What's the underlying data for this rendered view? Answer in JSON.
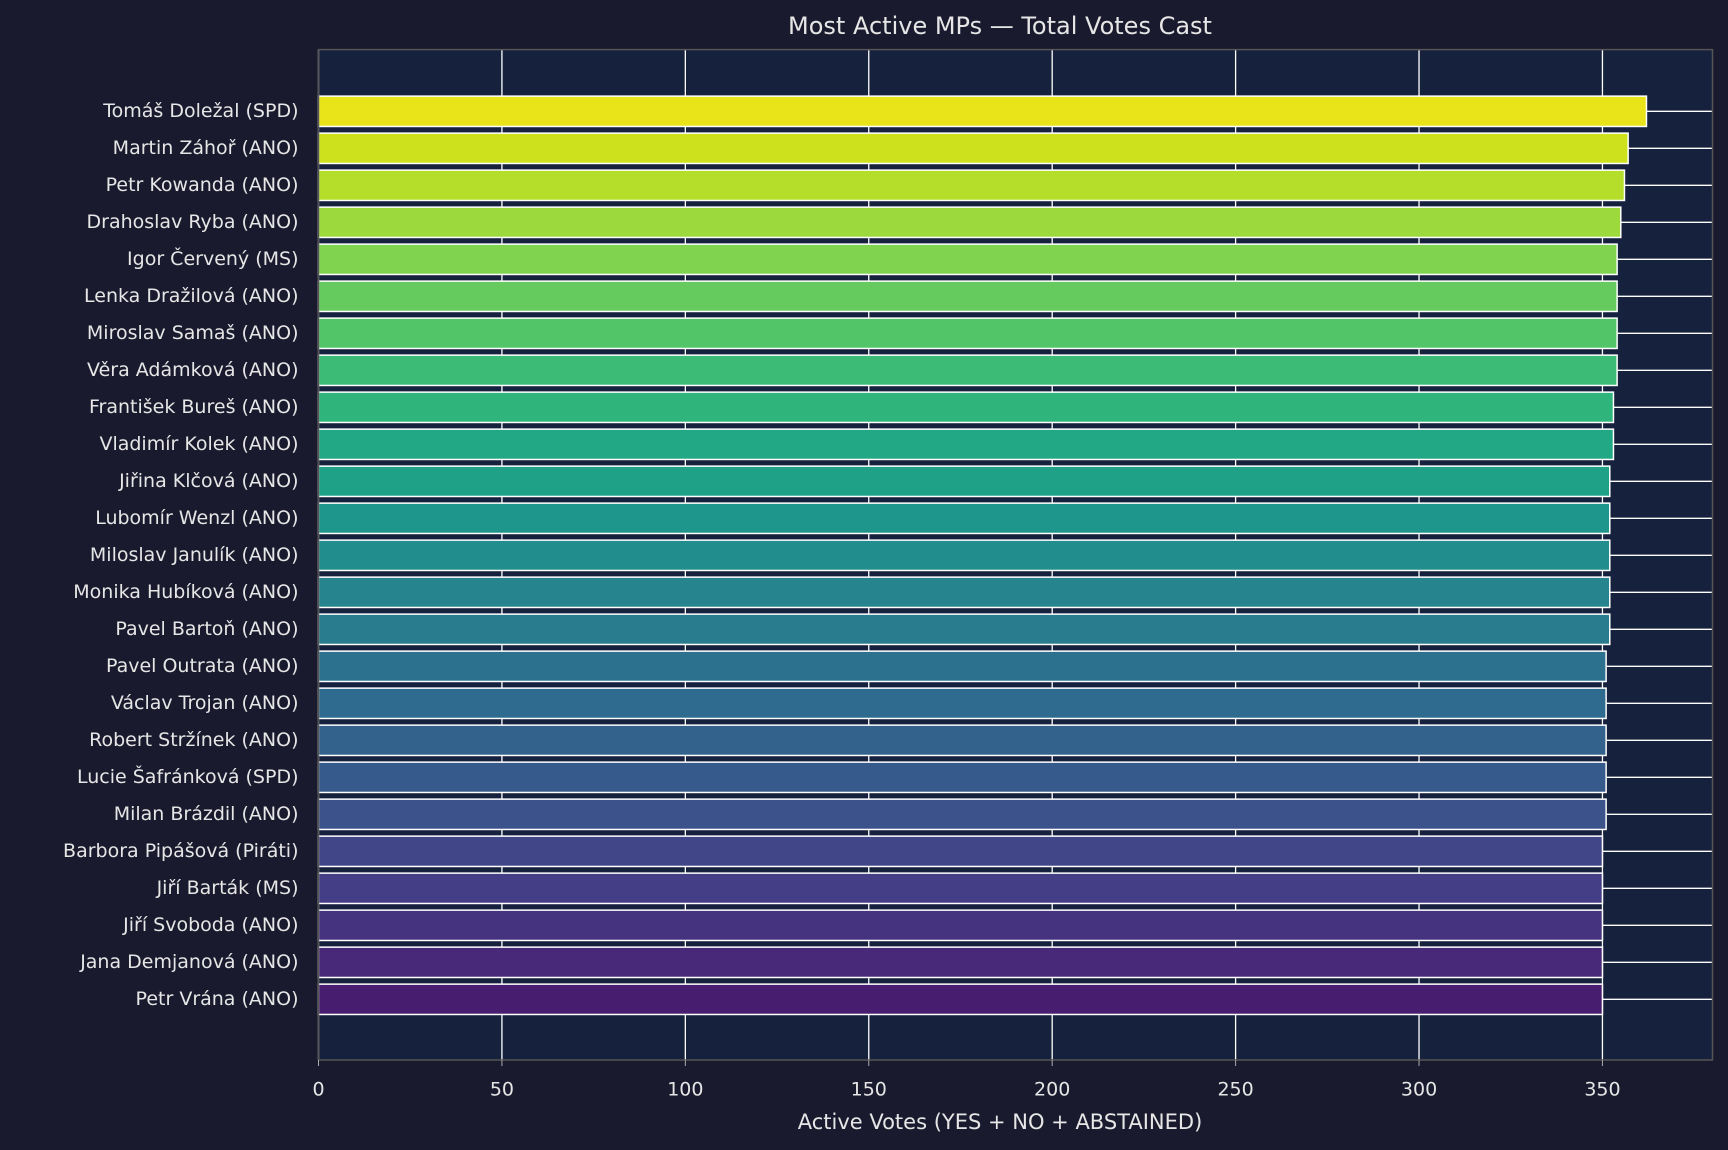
{
  "chart_data": {
    "type": "barh",
    "title": "Most Active MPs — Total Votes Cast",
    "xlabel": "Active Votes (YES + NO + ABSTAINED)",
    "categories": [
      "Tomáš Doležal (SPD)",
      "Martin Záhoř (ANO)",
      "Petr Kowanda (ANO)",
      "Drahoslav Ryba (ANO)",
      "Igor Červený (MS)",
      "Lenka Dražilová (ANO)",
      "Miroslav Samaš (ANO)",
      "Věra Adámková (ANO)",
      "František Bureš (ANO)",
      "Vladimír Kolek (ANO)",
      "Jiřina Klčová (ANO)",
      "Lubomír Wenzl (ANO)",
      "Miloslav Janulík (ANO)",
      "Monika Hubíková (ANO)",
      "Pavel Bartoň (ANO)",
      "Pavel Outrata (ANO)",
      "Václav Trojan (ANO)",
      "Robert Stržínek (ANO)",
      "Lucie Šafránková (SPD)",
      "Milan Brázdil (ANO)",
      "Barbora Pipášová (Piráti)",
      "Jiří Barták (MS)",
      "Jiří Svoboda (ANO)",
      "Jana Demjanová (ANO)",
      "Petr Vrána (ANO)"
    ],
    "values": [
      362,
      357,
      356,
      355,
      354,
      354,
      354,
      354,
      353,
      353,
      352,
      352,
      352,
      352,
      352,
      351,
      351,
      351,
      351,
      351,
      350,
      350,
      350,
      350,
      350
    ],
    "colors": [
      "#e8e419",
      "#cde11d",
      "#b5de2b",
      "#9bd93c",
      "#7fd34e",
      "#65cb5e",
      "#52c569",
      "#3bbb75",
      "#2fb47c",
      "#22a884",
      "#1fa188",
      "#1f968b",
      "#228d8d",
      "#25848e",
      "#287c8e",
      "#2c728e",
      "#2f6b8e",
      "#33638d",
      "#375a8c",
      "#3b528b",
      "#404688",
      "#433e85",
      "#46337f",
      "#482878",
      "#471d6f"
    ],
    "xlim": [
      0,
      380
    ],
    "xticks": [
      0,
      50,
      100,
      150,
      200,
      250,
      300,
      350
    ],
    "grid": true
  }
}
